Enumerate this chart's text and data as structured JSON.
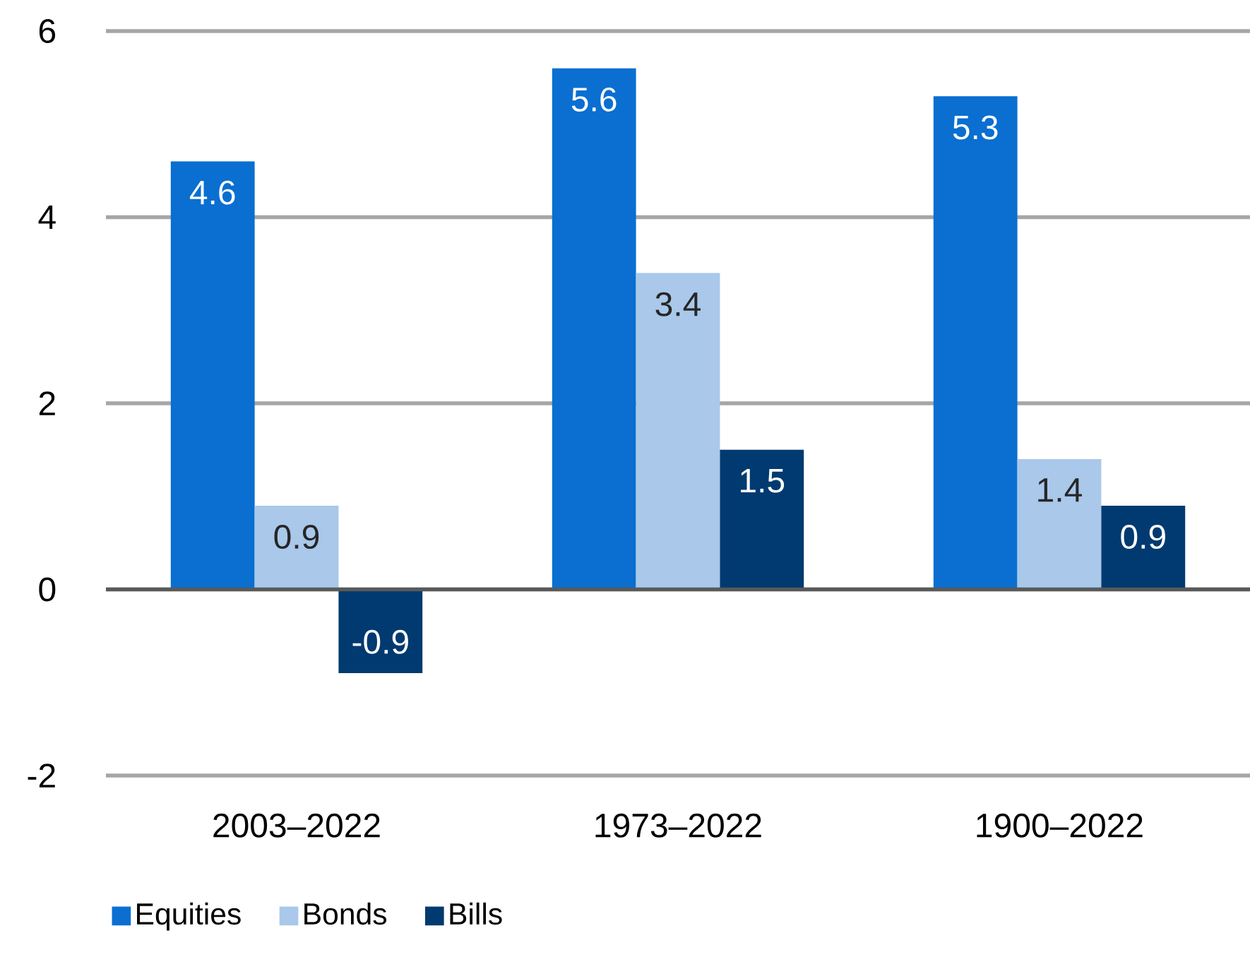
{
  "chart_data": {
    "type": "bar",
    "categories": [
      "2003–2022",
      "1973–2022",
      "1900–2022"
    ],
    "series": [
      {
        "name": "Equities",
        "color": "#0a6fd0",
        "values": [
          4.6,
          5.6,
          5.3
        ]
      },
      {
        "name": "Bonds",
        "color": "#a9c8ea",
        "values": [
          0.9,
          3.4,
          1.4
        ]
      },
      {
        "name": "Bills",
        "color": "#003a70",
        "values": [
          -0.9,
          1.5,
          0.9
        ]
      }
    ],
    "ylim": [
      -2,
      6
    ],
    "yticks": [
      -2,
      0,
      2,
      4,
      6
    ],
    "grid": "y",
    "legend": "bottom left",
    "data_labels": true
  }
}
